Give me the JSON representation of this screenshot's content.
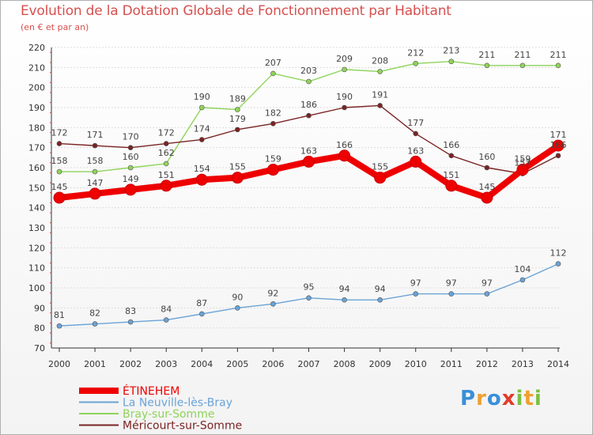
{
  "chart_data": {
    "type": "line",
    "title": "Evolution de la Dotation Globale de Fonctionnement par Habitant",
    "subtitle": "(en € et par an)",
    "xlabel": "",
    "ylabel": "",
    "ylim": [
      70,
      220
    ],
    "ytick_step": 10,
    "grid": true,
    "legend_position": "bottom-left",
    "x": [
      2000,
      2001,
      2002,
      2003,
      2004,
      2005,
      2006,
      2007,
      2008,
      2009,
      2010,
      2011,
      2012,
      2013,
      2014
    ],
    "series": [
      {
        "name": "ÉTINEHEM",
        "color": "#ee0000",
        "values": [
          145,
          147,
          149,
          151,
          154,
          155,
          159,
          163,
          166,
          155,
          163,
          151,
          145,
          159,
          171
        ]
      },
      {
        "name": "La Neuville-lès-Bray",
        "color": "#6aa3d6",
        "values": [
          81,
          82,
          83,
          84,
          87,
          90,
          92,
          95,
          94,
          94,
          97,
          97,
          97,
          104,
          112
        ]
      },
      {
        "name": "Bray-sur-Somme",
        "color": "#8fd45a",
        "values": [
          158,
          158,
          160,
          162,
          190,
          189,
          207,
          203,
          209,
          208,
          212,
          213,
          211,
          211,
          211
        ]
      },
      {
        "name": "Méricourt-sur-Somme",
        "color": "#7a2323",
        "values": [
          172,
          171,
          170,
          172,
          174,
          179,
          182,
          186,
          190,
          191,
          177,
          166,
          160,
          157,
          166
        ]
      }
    ]
  },
  "logo": {
    "letters": [
      "P",
      "r",
      "o",
      "x",
      "i",
      "t",
      "i"
    ],
    "colors": [
      "#3a8fd8",
      "#f0a030",
      "#3a8fd8",
      "#e23b2a",
      "#7bc043",
      "#f0a030",
      "#7bc043"
    ]
  }
}
